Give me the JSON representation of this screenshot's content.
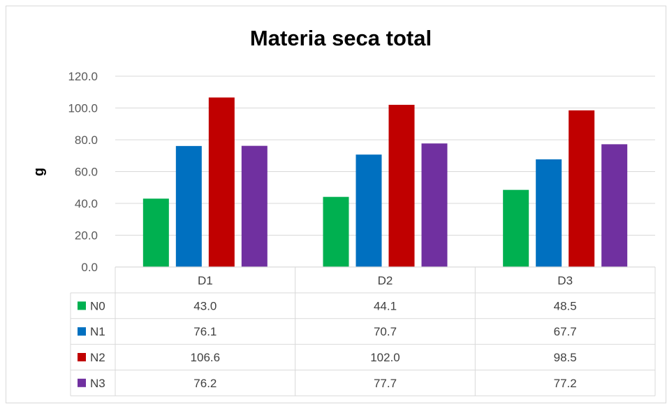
{
  "chart_data": {
    "type": "bar",
    "title": "Materia seca total",
    "xlabel": "",
    "ylabel": "g",
    "ylim": [
      0,
      120
    ],
    "yticks": [
      "0.0",
      "20.0",
      "40.0",
      "60.0",
      "80.0",
      "100.0",
      "120.0"
    ],
    "grid": true,
    "legend": "data-table",
    "categories": [
      "D1",
      "D2",
      "D3"
    ],
    "series": [
      {
        "name": "N0",
        "color": "#00b050",
        "values": [
          43.0,
          44.1,
          48.5
        ],
        "labels": [
          "43.0",
          "44.1",
          "48.5"
        ]
      },
      {
        "name": "N1",
        "color": "#0070c0",
        "values": [
          76.1,
          70.7,
          67.7
        ],
        "labels": [
          "76.1",
          "70.7",
          "67.7"
        ]
      },
      {
        "name": "N2",
        "color": "#c00000",
        "values": [
          106.6,
          102.0,
          98.5
        ],
        "labels": [
          "106.6",
          "102.0",
          "98.5"
        ]
      },
      {
        "name": "N3",
        "color": "#7030a0",
        "values": [
          76.2,
          77.7,
          77.2
        ],
        "labels": [
          "76.2",
          "77.7",
          "77.2"
        ]
      }
    ]
  }
}
